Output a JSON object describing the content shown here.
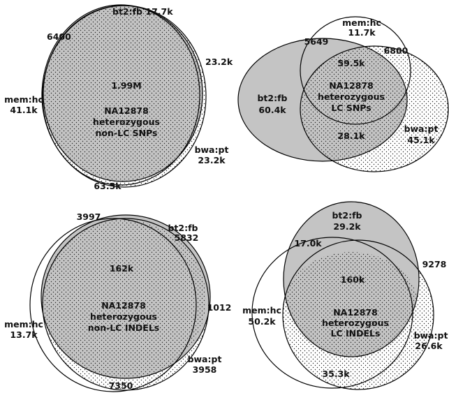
{
  "panels": [
    {
      "id": "top-left",
      "title_lines": [
        "NA12878",
        "heterozygous",
        "non-LC SNPs"
      ],
      "sets": {
        "mem_hc": "mem:hc",
        "bt2_fb": "bt2:fb",
        "bwa_pt": "bwa:pt"
      },
      "counts": {
        "mem_hc_only": "41.1k",
        "bt2_fb_only": "17.7k",
        "bwa_pt_only": "23.2k",
        "mem_bt2": "6400",
        "bt2_bwa": "23.2k",
        "mem_bwa": "63.5k",
        "all_three": "1.99M"
      }
    },
    {
      "id": "top-right",
      "title_lines": [
        "NA12878",
        "heterozygous",
        "LC SNPs"
      ],
      "sets": {
        "mem_hc": "mem:hc",
        "bt2_fb": "bt2:fb",
        "bwa_pt": "bwa:pt"
      },
      "counts": {
        "mem_hc_only": "11.7k",
        "bt2_fb_only": "60.4k",
        "bwa_pt_only": "45.1k",
        "mem_bt2": "5649",
        "mem_bwa": "6800",
        "bt2_bwa": "28.1k",
        "all_three": "59.5k"
      }
    },
    {
      "id": "bottom-left",
      "title_lines": [
        "NA12878",
        "heterozygous",
        "non-LC INDELs"
      ],
      "sets": {
        "mem_hc": "mem:hc",
        "bt2_fb": "bt2:fb",
        "bwa_pt": "bwa:pt"
      },
      "counts": {
        "mem_hc_only": "13.7k",
        "bt2_fb_only": "5832",
        "bwa_pt_only": "3958",
        "mem_bt2": "3997",
        "bt2_bwa": "1012",
        "mem_bwa": "7350",
        "all_three": "162k"
      }
    },
    {
      "id": "bottom-right",
      "title_lines": [
        "NA12878",
        "heterozygous",
        "LC INDELs"
      ],
      "sets": {
        "mem_hc": "mem:hc",
        "bt2_fb": "bt2:fb",
        "bwa_pt": "bwa:pt"
      },
      "counts": {
        "mem_hc_only": "50.2k",
        "bt2_fb_only": "29.2k",
        "bwa_pt_only": "26.6k",
        "mem_bt2": "17.0k",
        "bt2_bwa": "9278",
        "mem_bwa": "35.3k",
        "all_three": "160k"
      }
    }
  ],
  "colors": {
    "bt2_fill": "#c4c4c4",
    "dot": "#222222",
    "outline": "#000000",
    "background": "#ffffff"
  }
}
